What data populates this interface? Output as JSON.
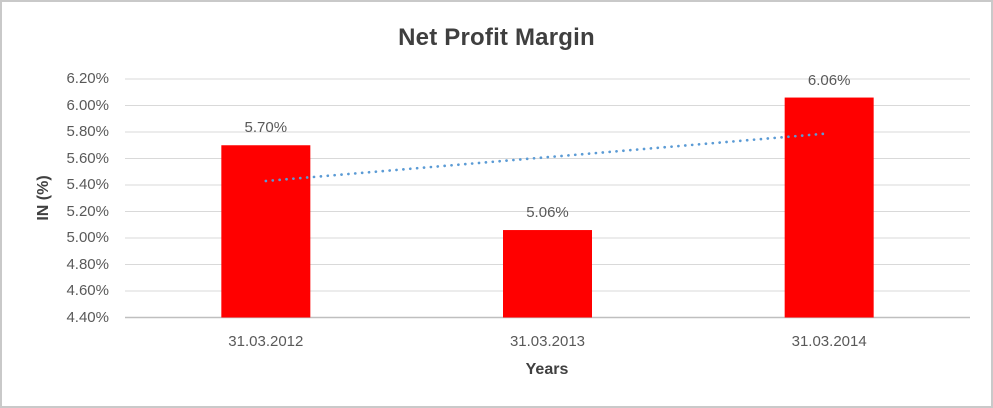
{
  "chart_data": {
    "type": "bar",
    "title": "Net Profit Margin",
    "xlabel": "Years",
    "ylabel": "IN (%)",
    "categories": [
      "31.03.2012",
      "31.03.2013",
      "31.03.2014"
    ],
    "values": [
      5.7,
      5.06,
      6.06
    ],
    "data_labels": [
      "5.70%",
      "5.06%",
      "6.06%"
    ],
    "ylim": [
      4.4,
      6.2
    ],
    "ytick_step": 0.2,
    "ytick_labels": [
      "4.40%",
      "4.60%",
      "4.80%",
      "5.00%",
      "5.20%",
      "5.40%",
      "5.60%",
      "5.80%",
      "6.00%",
      "6.20%"
    ],
    "grid": true,
    "legend": "none",
    "bar_color": "#FF0000",
    "gridline_color": "#d9d9d9",
    "axis_line_color": "#bfbfbf",
    "text_color": "#595959",
    "title_color": "#3f3f3f",
    "trendline": {
      "type": "linear",
      "style": "dotted",
      "color": "#5B9BD5",
      "start_value": 5.43,
      "end_value": 5.79
    }
  }
}
